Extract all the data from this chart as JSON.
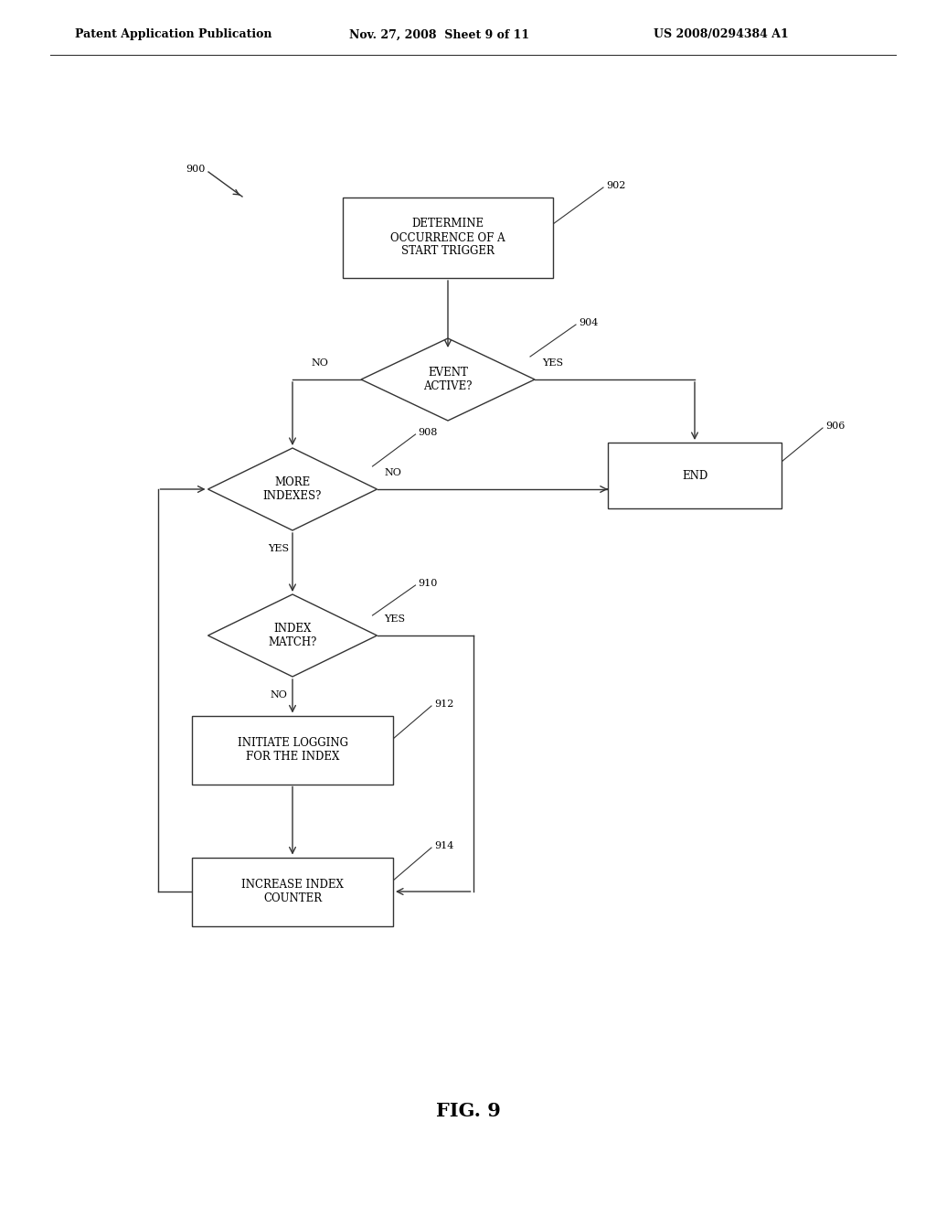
{
  "header_left": "Patent Application Publication",
  "header_mid": "Nov. 27, 2008  Sheet 9 of 11",
  "header_right": "US 2008/0294384 A1",
  "fig_label": "FIG. 9",
  "bg_color": "#ffffff",
  "line_color": "#333333",
  "font_size_node": 8.5,
  "font_size_ref": 8,
  "font_size_header": 9,
  "font_size_fig": 15,
  "font_size_yesno": 8
}
